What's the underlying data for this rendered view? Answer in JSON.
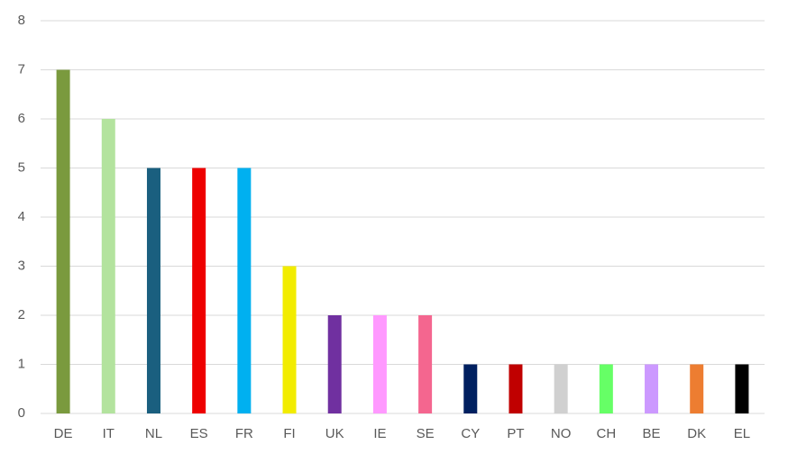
{
  "chart_data": {
    "type": "bar",
    "categories": [
      "DE",
      "IT",
      "NL",
      "ES",
      "FR",
      "FI",
      "UK",
      "IE",
      "SE",
      "CY",
      "PT",
      "NO",
      "CH",
      "BE",
      "DK",
      "EL"
    ],
    "values": [
      7,
      6,
      5,
      5,
      5,
      3,
      2,
      2,
      2,
      1,
      1,
      1,
      1,
      1,
      1,
      1
    ],
    "colors": [
      "#7a9a3e",
      "#b3e39e",
      "#1a5f7f",
      "#ee0000",
      "#00b0f0",
      "#f2ec00",
      "#7030a0",
      "#ff99ff",
      "#f4668f",
      "#002060",
      "#c00000",
      "#d0d0d0",
      "#66ff66",
      "#cc99ff",
      "#ed7d31",
      "#000000"
    ],
    "ylim": [
      0,
      8
    ],
    "yticks": [
      0,
      1,
      2,
      3,
      4,
      5,
      6,
      7,
      8
    ],
    "grid": true
  }
}
